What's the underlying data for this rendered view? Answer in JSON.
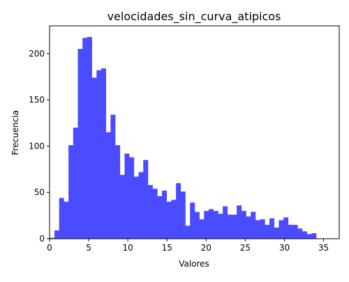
{
  "chart_data": {
    "type": "bar",
    "title": "velocidades_sin_curva_atipicos",
    "xlabel": "Valores",
    "ylabel": "Frecuencia",
    "xlim": [
      0,
      37
    ],
    "ylim": [
      0,
      230
    ],
    "xticks": [
      0,
      5,
      10,
      15,
      20,
      25,
      30,
      35
    ],
    "yticks": [
      0,
      50,
      100,
      150,
      200
    ],
    "grid": false,
    "bar_color": "#4b4bff",
    "bin_start": 0.03,
    "bin_width": 0.597,
    "values": [
      1,
      9,
      44,
      40,
      101,
      120,
      205,
      217,
      218,
      174,
      182,
      184,
      115,
      134,
      101,
      69,
      92,
      88,
      67,
      72,
      85,
      58,
      54,
      46,
      52,
      40,
      42,
      60,
      51,
      14,
      39,
      29,
      21,
      30,
      32,
      30,
      27,
      35,
      26,
      26,
      36,
      30,
      24,
      29,
      20,
      21,
      15,
      22,
      12,
      20,
      23,
      15,
      15,
      11,
      8,
      5,
      6
    ]
  }
}
